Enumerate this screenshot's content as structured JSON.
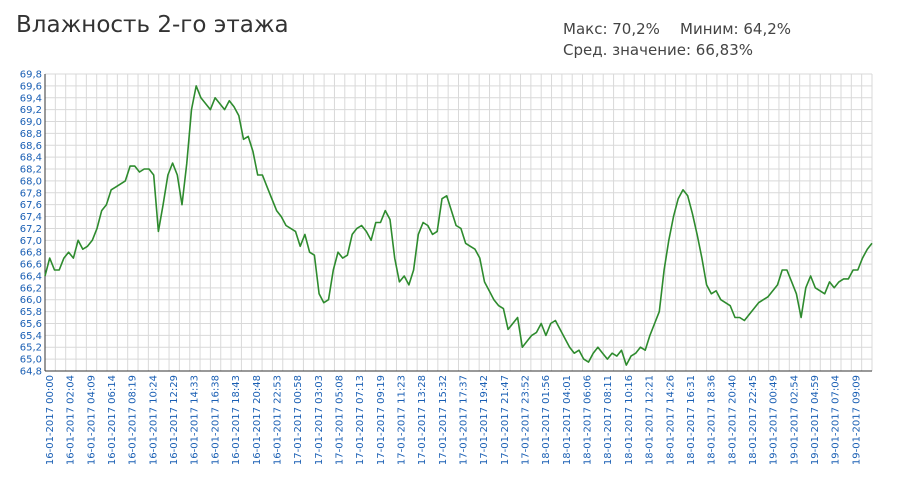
{
  "header": {
    "title": "Влажность 2-го этажа",
    "max_label": "Макс: 70,2%",
    "min_label": "Миним: 64,2%",
    "avg_label": "Сред. значение: 66,83%"
  },
  "colors": {
    "line": "#2e8b2e",
    "grid": "#d9d9d9",
    "axis": "#333333",
    "tick_text": "#1a5fb4"
  },
  "chart_data": {
    "type": "line",
    "title": "Влажность 2-го этажа",
    "xlabel": "",
    "ylabel": "",
    "ylim": [
      64.8,
      69.8
    ],
    "grid": true,
    "y_ticks": [
      "64,8",
      "65,0",
      "65,2",
      "65,4",
      "65,6",
      "65,8",
      "66,0",
      "66,2",
      "66,4",
      "66,6",
      "66,8",
      "67,0",
      "67,2",
      "67,4",
      "67,6",
      "67,8",
      "68,0",
      "68,2",
      "68,4",
      "68,6",
      "68,8",
      "69,0",
      "69,2",
      "69,4",
      "69,6",
      "69,8"
    ],
    "x_ticks": [
      "16-01-2017 00:00",
      "16-01-2017 02:04",
      "16-01-2017 04:09",
      "16-01-2017 06:14",
      "16-01-2017 08:19",
      "16-01-2017 10:24",
      "16-01-2017 12:29",
      "16-01-2017 14:33",
      "16-01-2017 16:38",
      "16-01-2017 18:43",
      "16-01-2017 20:48",
      "16-01-2017 22:53",
      "17-01-2017 00:58",
      "17-01-2017 03:03",
      "17-01-2017 05:08",
      "17-01-2017 07:13",
      "17-01-2017 09:19",
      "17-01-2017 11:23",
      "17-01-2017 13:28",
      "17-01-2017 15:32",
      "17-01-2017 17:37",
      "17-01-2017 19:42",
      "17-01-2017 21:47",
      "17-01-2017 23:52",
      "18-01-2017 01:56",
      "18-01-2017 04:01",
      "18-01-2017 06:06",
      "18-01-2017 08:11",
      "18-01-2017 10:16",
      "18-01-2017 12:21",
      "18-01-2017 14:26",
      "18-01-2017 16:31",
      "18-01-2017 18:36",
      "18-01-2017 20:40",
      "18-01-2017 22:45",
      "19-01-2017 00:49",
      "19-01-2017 02:54",
      "19-01-2017 04:59",
      "19-01-2017 07:04",
      "19-01-2017 09:09"
    ],
    "series": [
      {
        "values": [
          66.4,
          66.7,
          66.5,
          66.5,
          66.7,
          66.8,
          66.7,
          67.0,
          66.85,
          66.9,
          67.0,
          67.2,
          67.5,
          67.6,
          67.85,
          67.9,
          67.95,
          68.0,
          68.25,
          68.25,
          68.15,
          68.2,
          68.2,
          68.1,
          67.15,
          67.6,
          68.1,
          68.3,
          68.1,
          67.6,
          68.3,
          69.2,
          69.6,
          69.4,
          69.3,
          69.2,
          69.4,
          69.3,
          69.2,
          69.35,
          69.25,
          69.1,
          68.7,
          68.75,
          68.5,
          68.1,
          68.1,
          67.9,
          67.7,
          67.5,
          67.4,
          67.25,
          67.2,
          67.15,
          66.9,
          67.1,
          66.8,
          66.75,
          66.1,
          65.95,
          66.0,
          66.5,
          66.8,
          66.7,
          66.75,
          67.1,
          67.2,
          67.25,
          67.15,
          67.0,
          67.3,
          67.3,
          67.5,
          67.35,
          66.7,
          66.3,
          66.4,
          66.25,
          66.5,
          67.1,
          67.3,
          67.25,
          67.1,
          67.15,
          67.7,
          67.75,
          67.5,
          67.25,
          67.2,
          66.95,
          66.9,
          66.85,
          66.7,
          66.3,
          66.15,
          66.0,
          65.9,
          65.85,
          65.5,
          65.6,
          65.7,
          65.2,
          65.3,
          65.4,
          65.45,
          65.6,
          65.4,
          65.6,
          65.65,
          65.5,
          65.35,
          65.2,
          65.1,
          65.15,
          65.0,
          64.95,
          65.1,
          65.2,
          65.1,
          65.0,
          65.1,
          65.05,
          65.15,
          64.9,
          65.05,
          65.1,
          65.2,
          65.15,
          65.4,
          65.6,
          65.8,
          66.5,
          67.0,
          67.4,
          67.7,
          67.85,
          67.75,
          67.45,
          67.1,
          66.7,
          66.25,
          66.1,
          66.15,
          66.0,
          65.95,
          65.9,
          65.7,
          65.7,
          65.65,
          65.75,
          65.85,
          65.95,
          66.0,
          66.05,
          66.15,
          66.25,
          66.5,
          66.5,
          66.3,
          66.1,
          65.7,
          66.2,
          66.4,
          66.2,
          66.15,
          66.1,
          66.3,
          66.2,
          66.3,
          66.35,
          66.35,
          66.5,
          66.5,
          66.7,
          66.85,
          66.95
        ]
      }
    ]
  }
}
